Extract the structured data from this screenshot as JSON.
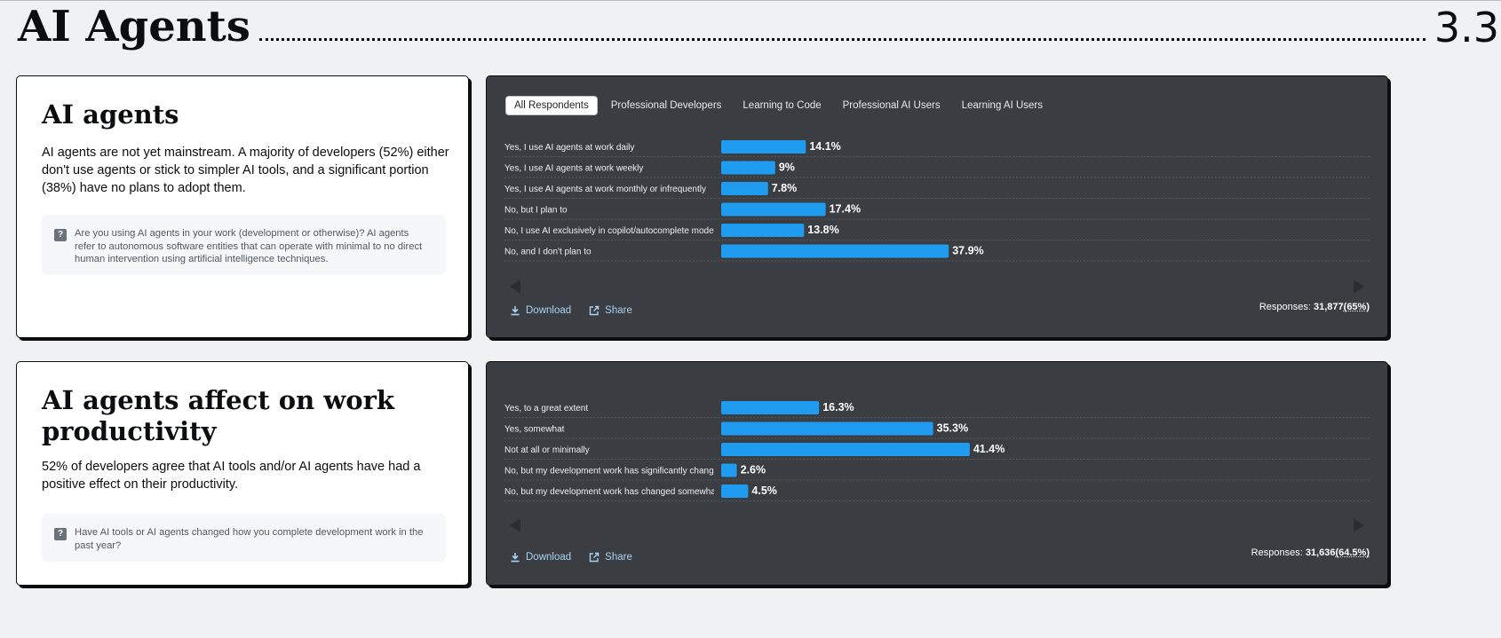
{
  "section": {
    "title": "AI Agents",
    "number": "3.3"
  },
  "cards": [
    {
      "title": "AI agents",
      "description": "AI agents are not yet mainstream. A majority of developers (52%) either don't use agents or stick to simpler AI tools, and a significant portion (38%) have no plans to adopt them.",
      "question": "Are you using AI agents in your work (development or otherwise)? AI agents refer to autonomous software entities that can operate with minimal to no direct human intervention using artificial intelligence techniques."
    },
    {
      "title": "AI agents affect on work productivity",
      "description": "52% of developers agree that AI tools and/or AI agents have had a positive effect on their productivity.",
      "question": "Have AI tools or AI agents changed how you complete development work in the past year?"
    }
  ],
  "tabs": [
    "All Respondents",
    "Professional Developers",
    "Learning to Code",
    "Professional AI Users",
    "Learning AI Users"
  ],
  "actions": {
    "download": "Download",
    "share": "Share"
  },
  "responses": [
    {
      "label": "Responses:",
      "count": "31,877",
      "pct": "(65%)"
    },
    {
      "label": "Responses:",
      "count": "31,636",
      "pct": "(64.5%)"
    }
  ],
  "colors": {
    "bar": "#1f9bf0",
    "card_dark": "#3a3d42",
    "link": "#a9d2f3"
  },
  "chart_data": [
    {
      "type": "bar",
      "orientation": "horizontal",
      "categories": [
        "Yes, I use AI agents at work daily",
        "Yes, I use AI agents at work weekly",
        "Yes, I use AI agents at work monthly or infrequently",
        "No, but I plan to",
        "No, I use AI exclusively in copilot/autocomplete mode",
        "No, and I don't plan to"
      ],
      "values": [
        14.1,
        9,
        7.8,
        17.4,
        13.8,
        37.9
      ],
      "value_labels": [
        "14.1%",
        "9%",
        "7.8%",
        "17.4%",
        "13.8%",
        "37.9%"
      ],
      "xlim": [
        0,
        100
      ]
    },
    {
      "type": "bar",
      "orientation": "horizontal",
      "categories": [
        "Yes, to a great extent",
        "Yes, somewhat",
        "Not at all or minimally",
        "No, but my development work has significantly changed",
        "No, but my development work has changed somewhat d"
      ],
      "values": [
        16.3,
        35.3,
        41.4,
        2.6,
        4.5
      ],
      "value_labels": [
        "16.3%",
        "35.3%",
        "41.4%",
        "2.6%",
        "4.5%"
      ],
      "xlim": [
        0,
        100
      ]
    }
  ]
}
